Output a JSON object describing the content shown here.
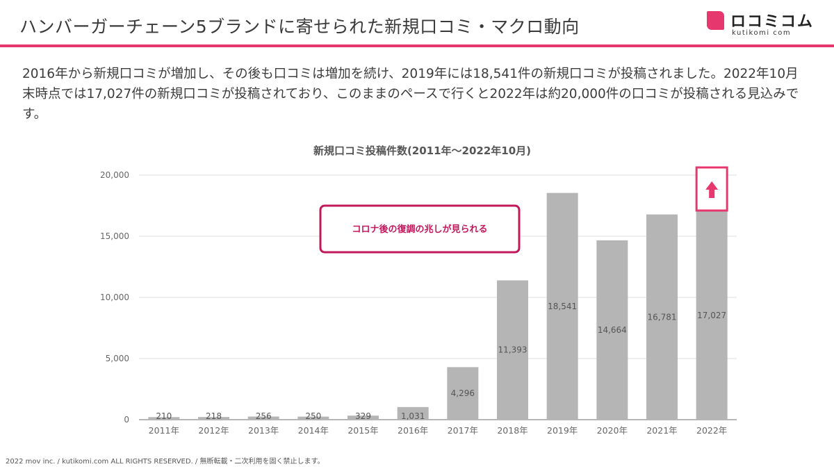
{
  "header": {
    "title": "ハンバーガーチェーン5ブランドに寄せられた新規口コミ・マクロ動向",
    "logo_name": "ロコミコム",
    "logo_sub": "kutikomi com"
  },
  "summary": "2016年から新規口コミが増加し、その後も口コミは増加を続け、2019年には18,541件の新規口コミが投稿されました。2022年10月末時点では17,027件の新規口コミが投稿されており、このままのペースで行くと2022年は約20,000件の口コミが投稿される見込みです。",
  "chart_data": {
    "type": "bar",
    "title": "新規口コミ投稿件数(2011年〜2022年10月)",
    "categories": [
      "2011年",
      "2012年",
      "2013年",
      "2014年",
      "2015年",
      "2016年",
      "2017年",
      "2018年",
      "2019年",
      "2020年",
      "2021年",
      "2022年"
    ],
    "values": [
      210,
      218,
      256,
      250,
      329,
      1031,
      4296,
      11393,
      18541,
      14664,
      16781,
      17027
    ],
    "value_labels": [
      "210",
      "218",
      "256",
      "250",
      "329",
      "1,031",
      "4,296",
      "11,393",
      "18,541",
      "14,664",
      "16,781",
      "17,027"
    ],
    "ylim": [
      0,
      20000
    ],
    "y_ticks": [
      0,
      5000,
      10000,
      15000,
      20000
    ],
    "y_tick_labels": [
      "0",
      "5,000",
      "10,000",
      "15,000",
      "20,000"
    ],
    "xlabel": "",
    "ylabel": "",
    "grid": true,
    "bar_color": "#b5b5b5",
    "annotation": "コロナ後の復調の兆しが見られる",
    "annotation_color": "#c2185b",
    "trend_arrow_color": "#e7376f"
  },
  "footer": "2022 mov inc. / kutikomi.com ALL RIGHTS RESERVED. / 無断転載・二次利用を固く禁止します。"
}
